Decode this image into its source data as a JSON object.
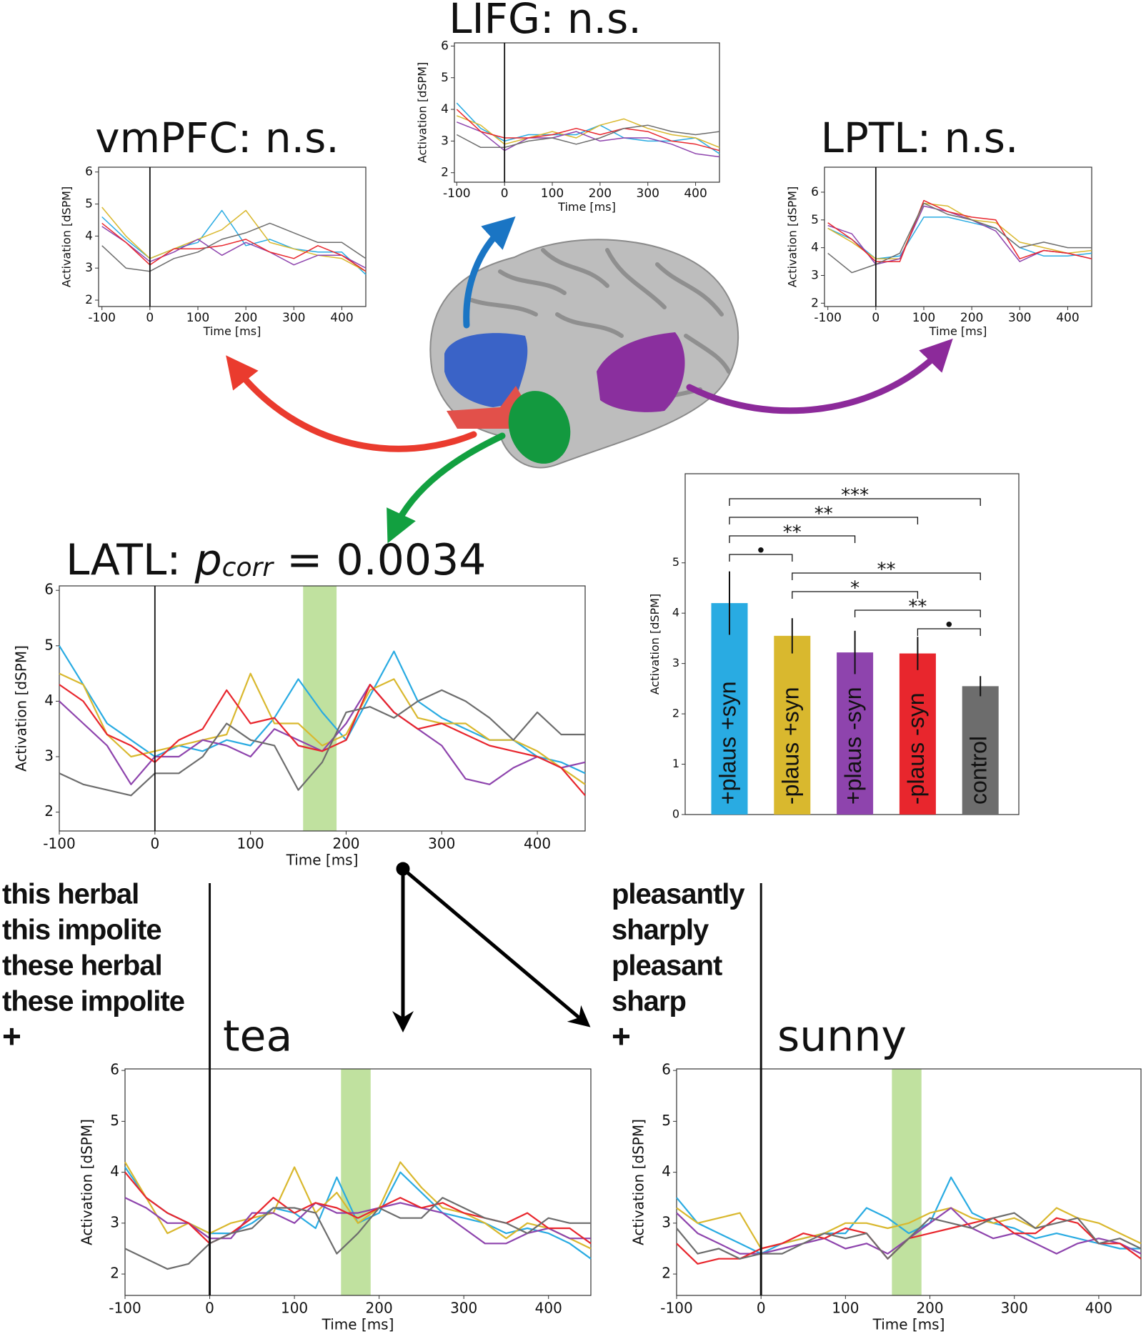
{
  "chart_data": [
    {
      "type": "line",
      "title": "vmPFC: n.s.",
      "x_label": "Time [ms]",
      "y_label": "Activation [dSPM]",
      "x": [
        -100,
        -50,
        0,
        50,
        100,
        150,
        200,
        250,
        300,
        350,
        400,
        450
      ],
      "xlim": [
        -107,
        450
      ],
      "ylim": [
        1.8,
        6.15
      ],
      "xticks": [
        -100,
        0,
        100,
        200,
        300,
        400
      ],
      "yticks": [
        2,
        3,
        4,
        5,
        6
      ],
      "vline": 0,
      "series": [
        {
          "color": "#29abe2",
          "values": [
            4.6,
            3.9,
            3.3,
            3.6,
            3.8,
            4.8,
            3.7,
            3.9,
            3.6,
            3.5,
            3.5,
            2.8
          ]
        },
        {
          "color": "#d9b82e",
          "values": [
            4.9,
            4.0,
            3.3,
            3.6,
            3.9,
            4.2,
            4.8,
            3.8,
            3.6,
            3.4,
            3.3,
            2.9
          ]
        },
        {
          "color": "#8e44ad",
          "values": [
            4.3,
            3.8,
            3.2,
            3.5,
            3.9,
            3.4,
            3.8,
            3.5,
            3.1,
            3.4,
            3.4,
            3.0
          ]
        },
        {
          "color": "#e8262d",
          "values": [
            4.4,
            3.8,
            3.1,
            3.6,
            3.6,
            3.7,
            3.9,
            3.5,
            3.3,
            3.7,
            3.4,
            2.9
          ]
        },
        {
          "color": "#6d6d6d",
          "values": [
            3.7,
            3.0,
            2.9,
            3.3,
            3.5,
            3.9,
            4.1,
            4.4,
            4.1,
            3.8,
            3.8,
            3.3
          ]
        }
      ]
    },
    {
      "type": "line",
      "title": "LIFG: n.s.",
      "x_label": "Time [ms]",
      "y_label": "Activation [dSPM]",
      "x": [
        -100,
        -50,
        0,
        50,
        100,
        150,
        200,
        250,
        300,
        350,
        400,
        450
      ],
      "xlim": [
        -105,
        450
      ],
      "ylim": [
        1.7,
        6.1
      ],
      "xticks": [
        -100,
        0,
        100,
        200,
        300,
        400
      ],
      "yticks": [
        2,
        3,
        4,
        5,
        6
      ],
      "vline": 0,
      "series": [
        {
          "color": "#29abe2",
          "values": [
            4.2,
            3.4,
            3.0,
            3.2,
            3.2,
            3.2,
            3.5,
            3.1,
            3.0,
            3.0,
            3.1,
            2.6
          ]
        },
        {
          "color": "#d9b82e",
          "values": [
            3.8,
            3.5,
            2.9,
            3.1,
            3.3,
            3.1,
            3.5,
            3.7,
            3.4,
            3.2,
            3.1,
            2.8
          ]
        },
        {
          "color": "#8e44ad",
          "values": [
            3.6,
            3.3,
            2.7,
            3.1,
            3.1,
            3.3,
            3.0,
            3.1,
            3.1,
            2.9,
            2.6,
            2.5
          ]
        },
        {
          "color": "#e8262d",
          "values": [
            4.0,
            3.3,
            3.1,
            3.1,
            3.2,
            3.4,
            3.2,
            3.4,
            3.3,
            3.0,
            2.9,
            2.7
          ]
        },
        {
          "color": "#6d6d6d",
          "values": [
            3.2,
            2.8,
            2.8,
            3.0,
            3.1,
            2.9,
            3.1,
            3.4,
            3.5,
            3.3,
            3.2,
            3.3
          ]
        }
      ]
    },
    {
      "type": "line",
      "title": "LPTL: n.s.",
      "x_label": "Time [ms]",
      "y_label": "Activation [dSPM]",
      "x": [
        -100,
        -50,
        0,
        50,
        100,
        150,
        200,
        250,
        300,
        350,
        400,
        450
      ],
      "xlim": [
        -107,
        450
      ],
      "ylim": [
        1.88,
        6.9
      ],
      "xticks": [
        -100,
        0,
        100,
        200,
        300,
        400
      ],
      "yticks": [
        2,
        3,
        4,
        5,
        6
      ],
      "vline": 0,
      "series": [
        {
          "color": "#29abe2",
          "values": [
            4.7,
            4.3,
            3.6,
            3.7,
            5.1,
            5.1,
            4.9,
            4.7,
            4.0,
            3.7,
            3.7,
            3.8
          ]
        },
        {
          "color": "#d9b82e",
          "values": [
            4.7,
            4.2,
            3.6,
            3.6,
            5.6,
            5.5,
            5.0,
            4.9,
            4.2,
            4.0,
            3.8,
            3.9
          ]
        },
        {
          "color": "#8e44ad",
          "values": [
            4.8,
            4.5,
            3.4,
            3.6,
            5.5,
            5.3,
            5.0,
            4.6,
            3.5,
            3.9,
            3.8,
            3.6
          ]
        },
        {
          "color": "#e8262d",
          "values": [
            4.9,
            4.3,
            3.5,
            3.5,
            5.7,
            5.3,
            5.1,
            5.0,
            3.6,
            3.9,
            3.8,
            3.6
          ]
        },
        {
          "color": "#6d6d6d",
          "values": [
            3.8,
            3.1,
            3.4,
            3.8,
            5.6,
            5.2,
            5.0,
            4.7,
            4.0,
            4.2,
            4.0,
            4.0
          ]
        }
      ]
    },
    {
      "type": "line",
      "title": [
        "LATL: ",
        "p",
        "corr",
        " = 0.0034"
      ],
      "x_label": "Time [ms]",
      "y_label": "Activation [dSPM]",
      "x": [
        -100,
        -75,
        -50,
        -25,
        0,
        25,
        50,
        75,
        100,
        125,
        150,
        175,
        200,
        225,
        250,
        275,
        300,
        325,
        350,
        375,
        400,
        425,
        450
      ],
      "xlim": [
        -100,
        450
      ],
      "ylim": [
        1.66,
        6.08
      ],
      "xticks": [
        -100,
        0,
        100,
        200,
        300,
        400
      ],
      "yticks": [
        2,
        3,
        4,
        5,
        6
      ],
      "vline": 0,
      "shade": [
        155,
        190
      ],
      "series": [
        {
          "color": "#29abe2",
          "values": [
            5.0,
            4.3,
            3.6,
            3.3,
            3.0,
            3.2,
            3.1,
            3.3,
            3.2,
            3.7,
            4.4,
            3.8,
            3.3,
            4.1,
            4.9,
            4.0,
            3.7,
            3.5,
            3.3,
            3.3,
            3.0,
            2.9,
            2.7
          ]
        },
        {
          "color": "#d9b82e",
          "values": [
            4.5,
            4.3,
            3.4,
            3.0,
            3.1,
            3.2,
            3.3,
            3.4,
            4.5,
            3.6,
            3.6,
            3.2,
            3.4,
            4.2,
            4.4,
            3.7,
            3.6,
            3.6,
            3.3,
            3.3,
            3.1,
            2.8,
            2.5
          ]
        },
        {
          "color": "#8e44ad",
          "values": [
            4.0,
            3.6,
            3.2,
            2.5,
            3.0,
            3.0,
            3.3,
            3.2,
            3.0,
            3.5,
            3.3,
            3.1,
            3.6,
            4.3,
            3.8,
            3.5,
            3.2,
            2.6,
            2.5,
            2.8,
            3.0,
            2.8,
            2.9
          ]
        },
        {
          "color": "#e8262d",
          "values": [
            4.3,
            4.0,
            3.4,
            3.2,
            2.9,
            3.3,
            3.5,
            4.2,
            3.6,
            3.7,
            3.2,
            3.1,
            3.3,
            4.3,
            3.8,
            3.5,
            3.6,
            3.4,
            3.2,
            3.1,
            3.0,
            2.8,
            2.3
          ]
        },
        {
          "color": "#6d6d6d",
          "values": [
            2.7,
            2.5,
            2.4,
            2.3,
            2.7,
            2.7,
            3.0,
            3.6,
            3.3,
            3.2,
            2.4,
            2.9,
            3.8,
            3.9,
            3.7,
            4.0,
            4.2,
            4.0,
            3.7,
            3.3,
            3.8,
            3.4,
            3.4
          ]
        }
      ]
    },
    {
      "type": "bar",
      "y_label": "Activation [dSPM]",
      "categories": [
        "+plaus +syn",
        "-plaus +syn",
        "+plaus -syn",
        "-plaus -syn",
        "control"
      ],
      "values": [
        4.2,
        3.55,
        3.22,
        3.2,
        2.55
      ],
      "errors": [
        0.63,
        0.35,
        0.43,
        0.33,
        0.2
      ],
      "colors": [
        "#29abe2",
        "#d9b82e",
        "#8e44ad",
        "#e8262d",
        "#6d6d6d"
      ],
      "ylim": [
        0,
        6.77
      ],
      "yticks": [
        0,
        1,
        2,
        3,
        4,
        5
      ],
      "comparisons": [
        {
          "from": 0,
          "to": 4,
          "label": "***"
        },
        {
          "from": 0,
          "to": 3,
          "label": "**"
        },
        {
          "from": 0,
          "to": 2,
          "label": "**"
        },
        {
          "from": 0,
          "to": 1,
          "label": "•"
        },
        {
          "from": 1,
          "to": 4,
          "label": "**"
        },
        {
          "from": 1,
          "to": 3,
          "label": "*"
        },
        {
          "from": 2,
          "to": 4,
          "label": "**"
        },
        {
          "from": 3,
          "to": 4,
          "label": "•"
        }
      ]
    },
    {
      "type": "line",
      "title": "tea",
      "x_label": "Time [ms]",
      "y_label": "Activation [dSPM]",
      "x": [
        -100,
        -75,
        -50,
        -25,
        0,
        25,
        50,
        75,
        100,
        125,
        150,
        175,
        200,
        225,
        250,
        275,
        300,
        325,
        350,
        375,
        400,
        425,
        450
      ],
      "xlim": [
        -100,
        450
      ],
      "ylim": [
        1.58,
        6.03
      ],
      "xticks": [
        -100,
        0,
        100,
        200,
        300,
        400
      ],
      "yticks": [
        2,
        3,
        4,
        5,
        6
      ],
      "vline": 0,
      "shade": [
        155,
        190
      ],
      "series": [
        {
          "name": "this herbal",
          "color": "#29abe2",
          "values": [
            4.1,
            3.5,
            3.2,
            3.0,
            2.8,
            2.8,
            3.0,
            3.3,
            3.2,
            2.9,
            3.9,
            3.0,
            3.2,
            4.0,
            3.6,
            3.2,
            3.1,
            3.0,
            2.8,
            2.9,
            2.8,
            2.6,
            2.3
          ]
        },
        {
          "name": "this impolite",
          "color": "#d9b82e",
          "values": [
            4.2,
            3.5,
            2.8,
            3.0,
            2.8,
            3.0,
            3.1,
            3.2,
            4.1,
            3.2,
            3.6,
            3.0,
            3.3,
            4.2,
            3.7,
            3.3,
            3.2,
            3.0,
            2.7,
            3.0,
            2.9,
            2.7,
            2.5
          ]
        },
        {
          "name": "these herbal",
          "color": "#8e44ad",
          "values": [
            3.5,
            3.3,
            3.0,
            3.0,
            2.7,
            2.7,
            3.2,
            3.2,
            3.0,
            3.4,
            3.2,
            3.2,
            3.3,
            3.4,
            3.3,
            3.2,
            2.9,
            2.6,
            2.6,
            2.8,
            2.9,
            2.7,
            2.7
          ]
        },
        {
          "name": "these impolite",
          "color": "#e8262d",
          "values": [
            4.0,
            3.5,
            3.2,
            3.0,
            2.6,
            2.8,
            3.1,
            3.5,
            3.2,
            3.4,
            3.3,
            3.1,
            3.3,
            3.5,
            3.3,
            3.4,
            3.2,
            3.1,
            3.0,
            3.2,
            2.9,
            2.9,
            2.6
          ]
        },
        {
          "name": "+",
          "color": "#6d6d6d",
          "values": [
            2.5,
            2.3,
            2.1,
            2.2,
            2.6,
            2.8,
            2.9,
            3.3,
            3.3,
            3.2,
            2.4,
            2.8,
            3.3,
            3.1,
            3.1,
            3.5,
            3.3,
            3.1,
            3.0,
            2.8,
            3.1,
            3.0,
            3.0
          ]
        }
      ]
    },
    {
      "type": "line",
      "title": "sunny",
      "x_label": "Time [ms]",
      "y_label": "Activation [dSPM]",
      "x": [
        -100,
        -75,
        -50,
        -25,
        0,
        25,
        50,
        75,
        100,
        125,
        150,
        175,
        200,
        225,
        250,
        275,
        300,
        325,
        350,
        375,
        400,
        425,
        450
      ],
      "xlim": [
        -100,
        450
      ],
      "ylim": [
        1.58,
        6.03
      ],
      "xticks": [
        -100,
        0,
        100,
        200,
        300,
        400
      ],
      "yticks": [
        2,
        3,
        4,
        5,
        6
      ],
      "vline": 0,
      "shade": [
        155,
        190
      ],
      "series": [
        {
          "name": "pleasantly",
          "color": "#29abe2",
          "values": [
            3.5,
            3.0,
            2.8,
            2.6,
            2.4,
            2.6,
            2.7,
            2.8,
            2.8,
            3.3,
            3.1,
            2.8,
            3.0,
            3.9,
            3.2,
            3.0,
            2.9,
            2.7,
            2.8,
            2.7,
            2.6,
            2.5,
            2.5
          ]
        },
        {
          "name": "sharply",
          "color": "#d9b82e",
          "values": [
            3.3,
            3.0,
            3.1,
            3.2,
            2.5,
            2.6,
            2.7,
            2.8,
            3.0,
            3.0,
            2.9,
            3.0,
            3.2,
            3.3,
            3.1,
            3.0,
            3.1,
            2.9,
            3.3,
            3.1,
            3.0,
            2.8,
            2.6
          ]
        },
        {
          "name": "pleasant",
          "color": "#8e44ad",
          "values": [
            3.2,
            2.8,
            2.6,
            2.4,
            2.4,
            2.5,
            2.6,
            2.7,
            2.5,
            2.6,
            2.4,
            2.7,
            3.0,
            3.3,
            2.9,
            2.7,
            2.8,
            2.6,
            2.4,
            2.6,
            2.7,
            2.6,
            2.4
          ]
        },
        {
          "name": "sharp",
          "color": "#e8262d",
          "values": [
            2.6,
            2.2,
            2.3,
            2.3,
            2.5,
            2.6,
            2.8,
            2.7,
            2.9,
            2.8,
            2.3,
            2.7,
            2.8,
            2.9,
            3.0,
            3.1,
            2.8,
            2.8,
            3.1,
            3.0,
            2.6,
            2.6,
            2.3
          ]
        },
        {
          "name": "+",
          "color": "#6d6d6d",
          "values": [
            2.9,
            2.4,
            2.5,
            2.3,
            2.4,
            2.4,
            2.6,
            2.8,
            2.7,
            2.8,
            2.3,
            2.7,
            3.1,
            3.0,
            2.9,
            3.1,
            3.2,
            2.9,
            3.0,
            3.1,
            2.6,
            2.7,
            2.5
          ]
        }
      ]
    }
  ]
}
